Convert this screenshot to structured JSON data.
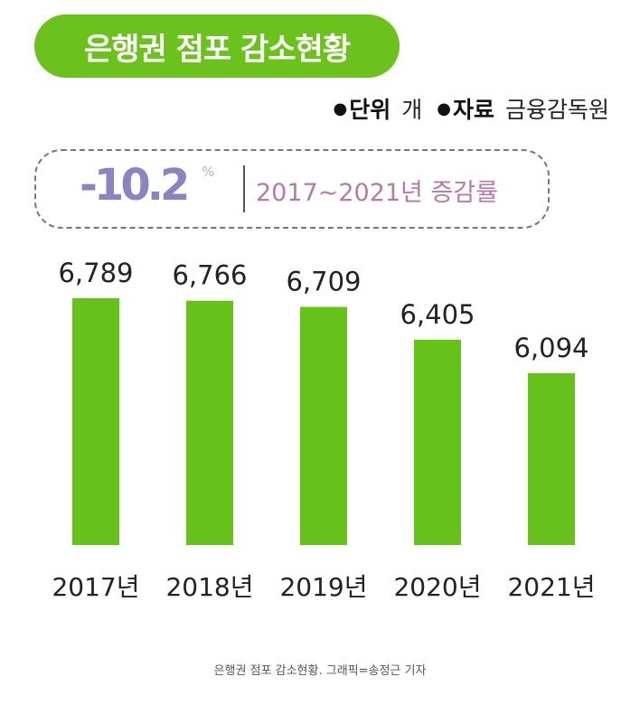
{
  "header": {
    "title": "은행권 점포 감소현황"
  },
  "meta": {
    "bullet": "●",
    "unit_key": "단위",
    "unit_value": "개",
    "source_key": "자료",
    "source_value": "금융감독원"
  },
  "rate": {
    "value": "-10.2",
    "unit": "%",
    "label": "2017~2021년 증감률"
  },
  "colors": {
    "title_pill": "#6cc21c",
    "bar": "#66c21a",
    "rate_value": "#8a85c2",
    "rate_label": "#b47ba8"
  },
  "chart_data": {
    "type": "bar",
    "categories": [
      "2017년",
      "2018년",
      "2019년",
      "2020년",
      "2021년"
    ],
    "values": [
      6789,
      6766,
      6709,
      6405,
      6094
    ],
    "value_labels": [
      "6,789",
      "6,766",
      "6,709",
      "6,405",
      "6,094"
    ],
    "ylim": [
      4500,
      6900
    ],
    "title": "",
    "xlabel": "",
    "ylabel": "",
    "grid": false,
    "legend": "none"
  },
  "caption": "은행권 점포 감소현황. 그래픽=송정근 기자"
}
